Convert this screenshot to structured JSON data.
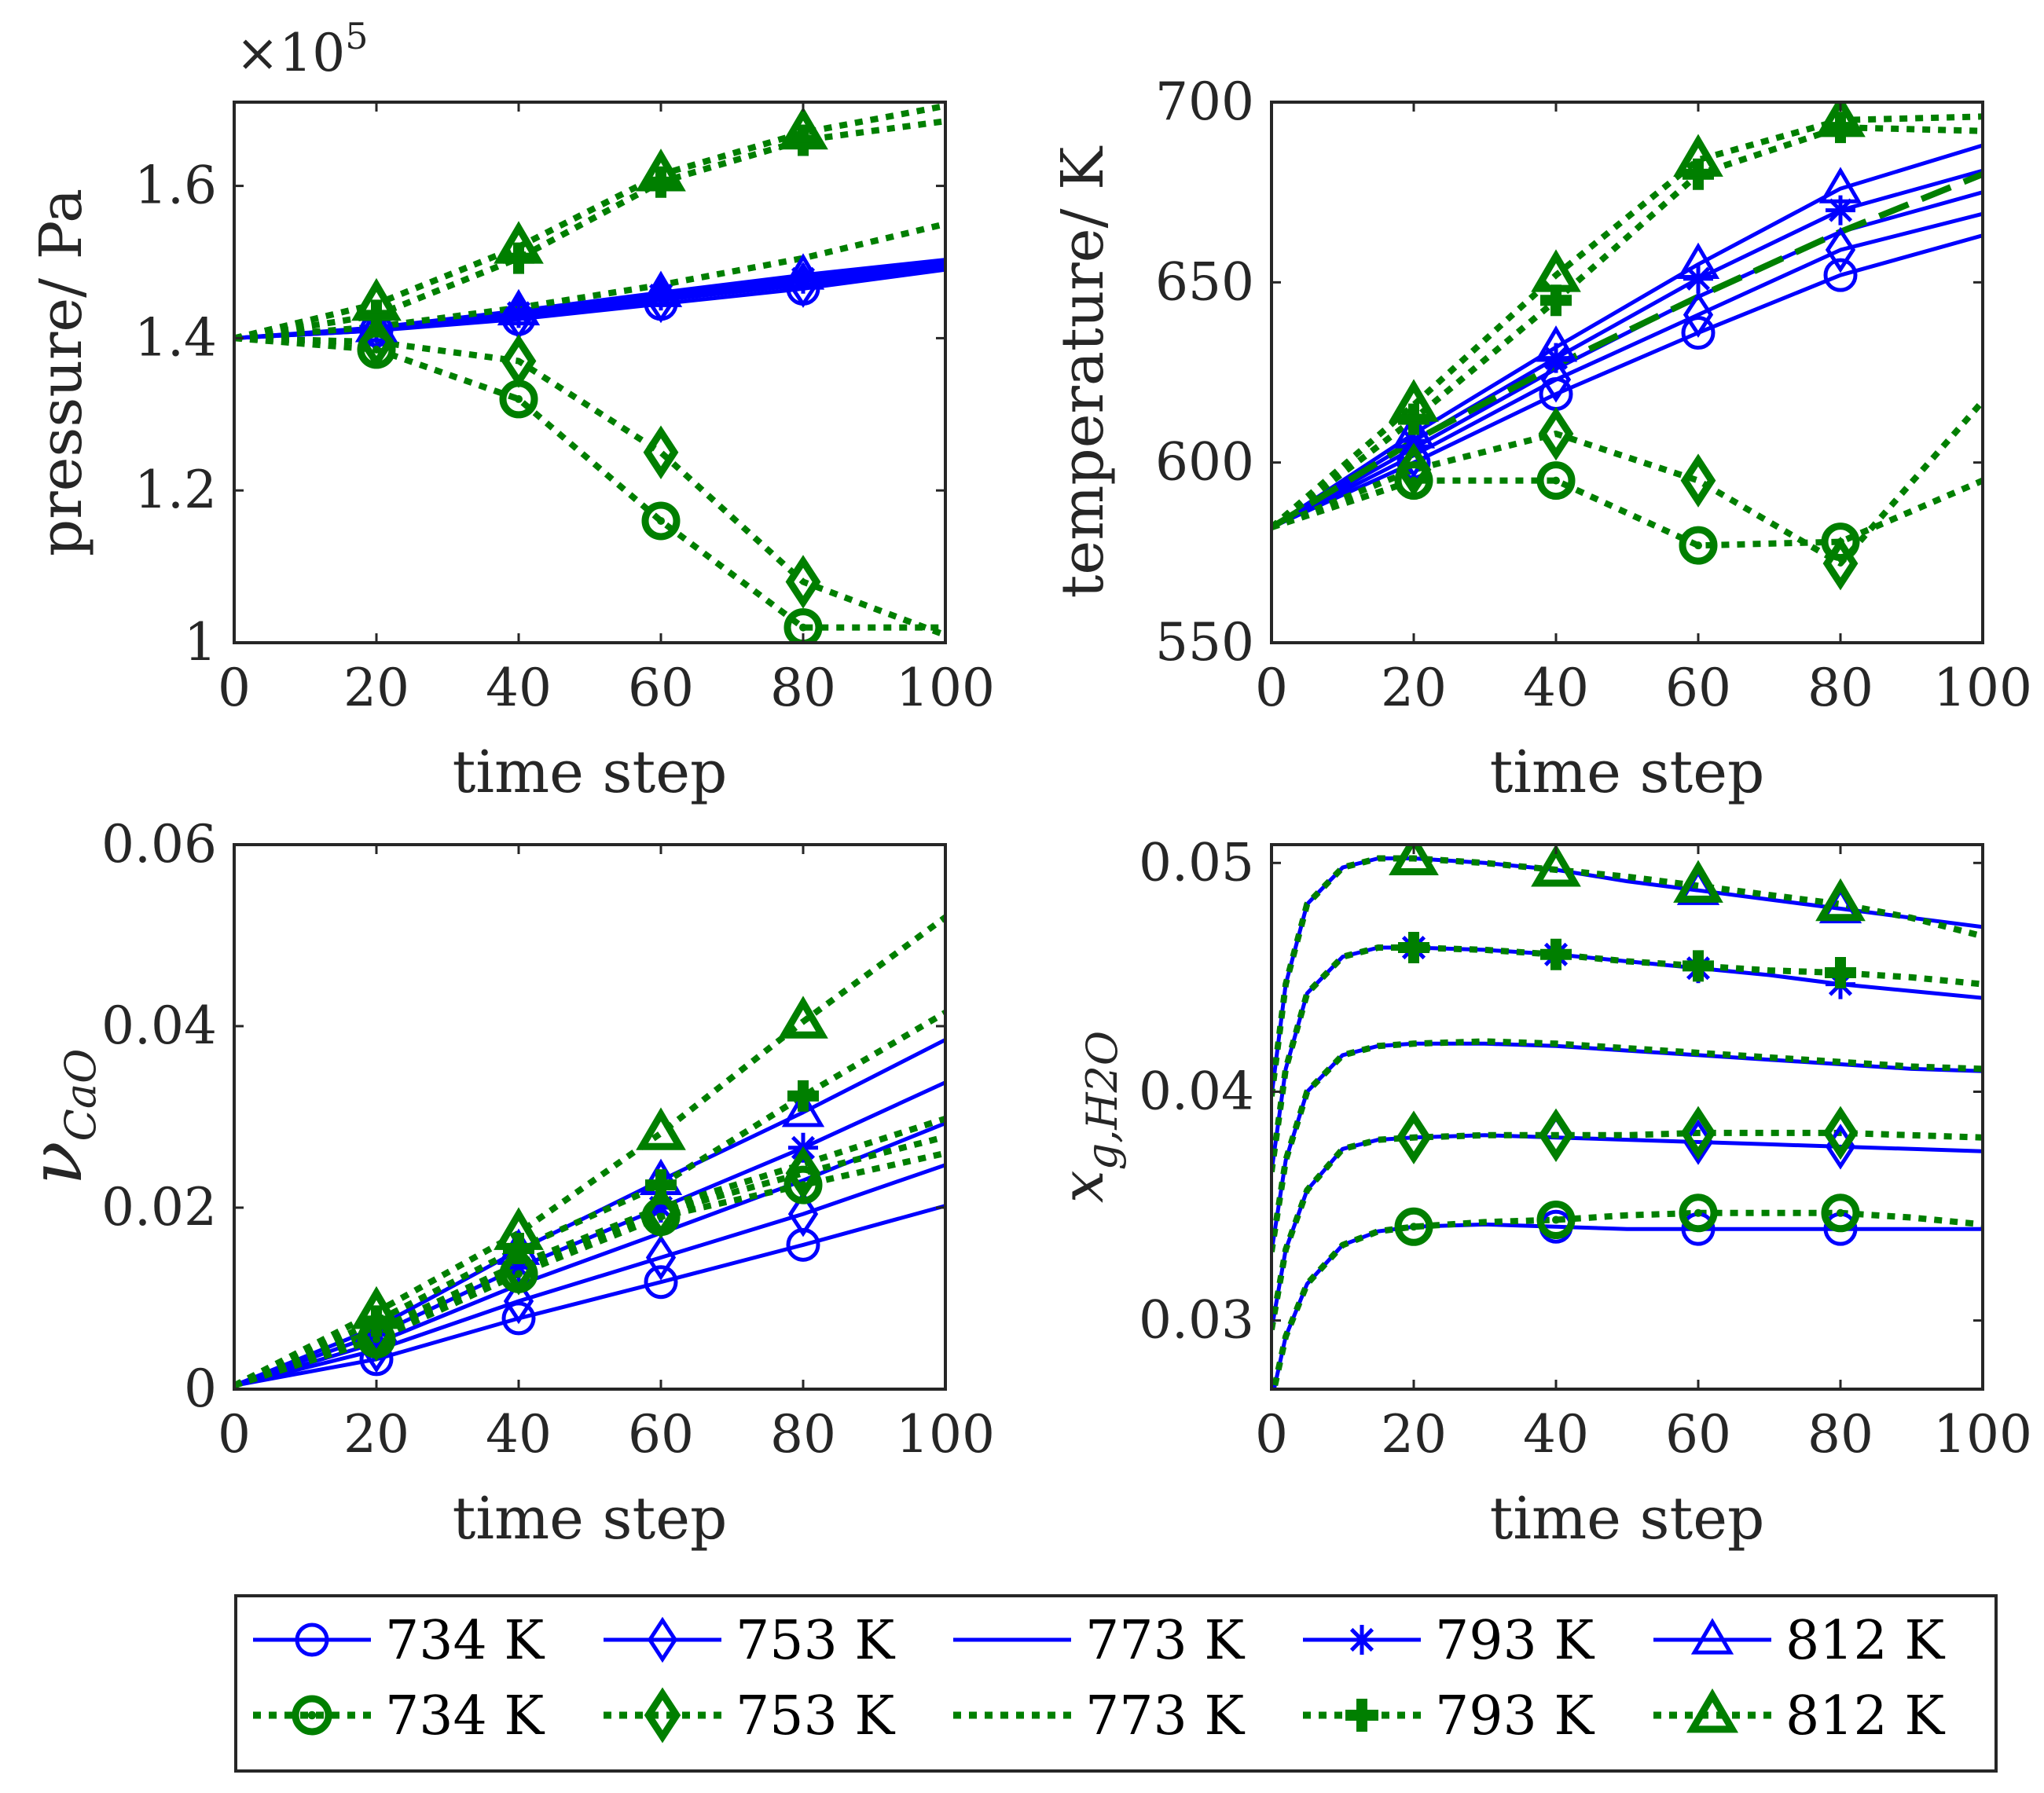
{
  "colors": {
    "blue": "#0000ff",
    "green": "#007f00",
    "axis": "#262626"
  },
  "chart_data": [
    {
      "type": "line",
      "id": "pressure",
      "title": "",
      "xlabel": "time step",
      "ylabel": "pressure/ Pa",
      "exponent_base": "×10",
      "exponent_power": "5",
      "xlim": [
        0,
        100
      ],
      "ylim": [
        1.0,
        1.71
      ],
      "xticks": [
        "0",
        "20",
        "40",
        "60",
        "80",
        "100"
      ],
      "yticks": [
        "1",
        "1.2",
        "1.4",
        "1.6"
      ],
      "ytick_values": [
        1.0,
        1.2,
        1.4,
        1.6
      ],
      "x": [
        0,
        20,
        40,
        60,
        80,
        100
      ],
      "series": [
        {
          "name": "734 K",
          "group": "blue",
          "marker": "circle",
          "values": [
            1.4,
            1.41,
            1.425,
            1.445,
            1.465,
            1.49
          ]
        },
        {
          "name": "753 K",
          "group": "blue",
          "marker": "diamond",
          "values": [
            1.4,
            1.41,
            1.428,
            1.45,
            1.47,
            1.493
          ]
        },
        {
          "name": "773 K",
          "group": "blue",
          "marker": "none",
          "values": [
            1.4,
            1.412,
            1.43,
            1.453,
            1.475,
            1.496
          ]
        },
        {
          "name": "793 K",
          "group": "blue",
          "marker": "star",
          "values": [
            1.4,
            1.413,
            1.433,
            1.456,
            1.478,
            1.499
          ]
        },
        {
          "name": "812 K",
          "group": "blue",
          "marker": "triangle",
          "values": [
            1.4,
            1.414,
            1.436,
            1.46,
            1.483,
            1.503
          ]
        },
        {
          "name": "734 K",
          "group": "green",
          "marker": "circle",
          "values": [
            1.4,
            1.385,
            1.32,
            1.16,
            1.02,
            1.02
          ]
        },
        {
          "name": "753 K",
          "group": "green",
          "marker": "diamond",
          "values": [
            1.4,
            1.395,
            1.37,
            1.25,
            1.08,
            1.01
          ]
        },
        {
          "name": "773 K",
          "group": "green",
          "marker": "none",
          "values": [
            1.4,
            1.415,
            1.44,
            1.47,
            1.505,
            1.55
          ]
        },
        {
          "name": "793 K",
          "group": "green",
          "marker": "plus",
          "values": [
            1.4,
            1.43,
            1.505,
            1.605,
            1.66,
            1.685
          ]
        },
        {
          "name": "812 K",
          "group": "green",
          "marker": "triangle",
          "values": [
            1.4,
            1.445,
            1.52,
            1.615,
            1.67,
            1.705
          ]
        }
      ]
    },
    {
      "type": "line",
      "id": "temperature",
      "title": "",
      "xlabel": "time step",
      "ylabel": "temperature/ K",
      "xlim": [
        0,
        100
      ],
      "ylim": [
        550,
        700
      ],
      "xticks": [
        "0",
        "20",
        "40",
        "60",
        "80",
        "100"
      ],
      "yticks": [
        "550",
        "600",
        "650",
        "700"
      ],
      "ytick_values": [
        550,
        600,
        650,
        700
      ],
      "x": [
        0,
        20,
        40,
        60,
        80,
        100
      ],
      "series": [
        {
          "name": "734 K",
          "group": "blue",
          "marker": "circle",
          "values": [
            582,
            600,
            619,
            636,
            652,
            663
          ]
        },
        {
          "name": "753 K",
          "group": "blue",
          "marker": "diamond",
          "values": [
            582,
            602,
            623,
            641,
            659,
            669
          ]
        },
        {
          "name": "773 K",
          "group": "blue",
          "marker": "none",
          "values": [
            582,
            604,
            626,
            646,
            664,
            675
          ]
        },
        {
          "name": "793 K",
          "group": "blue",
          "marker": "star",
          "values": [
            582,
            606,
            629,
            651,
            670,
            681
          ]
        },
        {
          "name": "812 K",
          "group": "blue",
          "marker": "triangle",
          "values": [
            582,
            608,
            632,
            655,
            676,
            688
          ]
        },
        {
          "name": "734 K",
          "group": "green",
          "marker": "circle",
          "values": [
            582,
            595,
            595,
            577,
            578,
            595
          ]
        },
        {
          "name": "753 K",
          "group": "green",
          "marker": "diamond",
          "values": [
            582,
            598,
            608,
            595,
            572,
            617
          ]
        },
        {
          "name": "773 K",
          "group": "green",
          "marker": "none",
          "values": [
            582,
            606,
            627,
            646,
            664,
            680
          ]
        },
        {
          "name": "793 K",
          "group": "green",
          "marker": "plus",
          "values": [
            582,
            612,
            645,
            680,
            693,
            692
          ]
        },
        {
          "name": "812 K",
          "group": "green",
          "marker": "triangle",
          "values": [
            582,
            616,
            652,
            684,
            695,
            696
          ]
        }
      ]
    },
    {
      "type": "line",
      "id": "nu-cao",
      "title": "",
      "xlabel": "time step",
      "ylabel": "ν",
      "ylabel_sub": "CaO",
      "xlim": [
        0,
        100
      ],
      "ylim": [
        0,
        0.06
      ],
      "xticks": [
        "0",
        "20",
        "40",
        "60",
        "80",
        "100"
      ],
      "yticks": [
        "0",
        "0.02",
        "0.04",
        "0.06"
      ],
      "ytick_values": [
        0,
        0.02,
        0.04,
        0.06
      ],
      "x": [
        0,
        20,
        40,
        60,
        80,
        100
      ],
      "series": [
        {
          "name": "734 K",
          "group": "blue",
          "marker": "circle",
          "values": [
            0.0004,
            0.0033,
            0.0078,
            0.0118,
            0.0159,
            0.0202
          ]
        },
        {
          "name": "753 K",
          "group": "blue",
          "marker": "diamond",
          "values": [
            0.0004,
            0.0043,
            0.0097,
            0.0145,
            0.0193,
            0.0247
          ]
        },
        {
          "name": "773 K",
          "group": "blue",
          "marker": "none",
          "values": [
            0.0004,
            0.0051,
            0.0115,
            0.0172,
            0.023,
            0.0293
          ]
        },
        {
          "name": "793 K",
          "group": "blue",
          "marker": "star",
          "values": [
            0.0004,
            0.006,
            0.0134,
            0.02,
            0.0266,
            0.0338
          ]
        },
        {
          "name": "812 K",
          "group": "blue",
          "marker": "triangle",
          "values": [
            0.0004,
            0.0068,
            0.0153,
            0.023,
            0.0305,
            0.0385
          ]
        },
        {
          "name": "734 K",
          "group": "green",
          "marker": "circle",
          "values": [
            0.0004,
            0.0055,
            0.0127,
            0.019,
            0.0225,
            0.026
          ]
        },
        {
          "name": "753 K",
          "group": "green",
          "marker": "diamond",
          "values": [
            0.0004,
            0.006,
            0.0133,
            0.0195,
            0.0238,
            0.0278
          ]
        },
        {
          "name": "773 K",
          "group": "green",
          "marker": "none",
          "values": [
            0.0004,
            0.0065,
            0.0138,
            0.02,
            0.0248,
            0.0298
          ]
        },
        {
          "name": "793 K",
          "group": "green",
          "marker": "plus",
          "values": [
            0.0004,
            0.0075,
            0.0155,
            0.0225,
            0.0323,
            0.0415
          ]
        },
        {
          "name": "812 K",
          "group": "green",
          "marker": "triangle",
          "values": [
            0.0004,
            0.0085,
            0.0172,
            0.0282,
            0.0405,
            0.052
          ]
        }
      ]
    },
    {
      "type": "line",
      "id": "x-h2o",
      "title": "",
      "xlabel": "time step",
      "ylabel": "x",
      "ylabel_sub": "g,H2O",
      "xlim": [
        0,
        100
      ],
      "ylim": [
        0.027,
        0.0508
      ],
      "xticks": [
        "0",
        "20",
        "40",
        "60",
        "80",
        "100"
      ],
      "yticks": [
        "0.03",
        "0.04",
        "0.05"
      ],
      "ytick_values": [
        0.03,
        0.04,
        0.05
      ],
      "x": [
        0,
        2,
        5,
        10,
        15,
        20,
        30,
        40,
        50,
        60,
        70,
        80,
        90,
        100
      ],
      "series": [
        {
          "name": "734 K",
          "group": "blue",
          "marker": "circle",
          "values": [
            0.0265,
            0.0293,
            0.0316,
            0.0333,
            0.0339,
            0.0341,
            0.0342,
            0.0341,
            0.034,
            0.034,
            0.034,
            0.034,
            0.034,
            0.034
          ]
        },
        {
          "name": "753 K",
          "group": "blue",
          "marker": "diamond",
          "values": [
            0.0296,
            0.0331,
            0.0357,
            0.0375,
            0.0379,
            0.038,
            0.0381,
            0.038,
            0.0379,
            0.0378,
            0.0377,
            0.0376,
            0.0375,
            0.0374
          ]
        },
        {
          "name": "773 K",
          "group": "blue",
          "marker": "none",
          "values": [
            0.033,
            0.037,
            0.04,
            0.0416,
            0.042,
            0.0421,
            0.0421,
            0.042,
            0.0418,
            0.0416,
            0.0414,
            0.0412,
            0.041,
            0.0409
          ]
        },
        {
          "name": "793 K",
          "group": "blue",
          "marker": "star",
          "values": [
            0.0365,
            0.041,
            0.0443,
            0.0459,
            0.0463,
            0.0463,
            0.0462,
            0.046,
            0.0457,
            0.0454,
            0.0451,
            0.0447,
            0.0444,
            0.0441
          ]
        },
        {
          "name": "812 K",
          "group": "blue",
          "marker": "triangle",
          "values": [
            0.0398,
            0.0447,
            0.0482,
            0.0498,
            0.0502,
            0.0502,
            0.05,
            0.0497,
            0.0492,
            0.0488,
            0.0484,
            0.048,
            0.0476,
            0.0472
          ]
        },
        {
          "name": "734 K",
          "group": "green",
          "marker": "circle",
          "values": [
            0.0265,
            0.0293,
            0.0316,
            0.0333,
            0.0339,
            0.0341,
            0.0343,
            0.0344,
            0.0346,
            0.0347,
            0.0347,
            0.0347,
            0.0345,
            0.0342
          ]
        },
        {
          "name": "753 K",
          "group": "green",
          "marker": "diamond",
          "values": [
            0.0296,
            0.0331,
            0.0357,
            0.0375,
            0.0379,
            0.038,
            0.0381,
            0.0381,
            0.0381,
            0.0382,
            0.0382,
            0.0382,
            0.0381,
            0.038
          ]
        },
        {
          "name": "773 K",
          "group": "green",
          "marker": "none",
          "values": [
            0.033,
            0.037,
            0.04,
            0.0416,
            0.042,
            0.0421,
            0.0422,
            0.0421,
            0.0419,
            0.0417,
            0.0415,
            0.0413,
            0.0411,
            0.041
          ]
        },
        {
          "name": "793 K",
          "group": "green",
          "marker": "plus",
          "values": [
            0.0365,
            0.041,
            0.0443,
            0.0459,
            0.0463,
            0.0463,
            0.0462,
            0.046,
            0.0457,
            0.0455,
            0.0453,
            0.0452,
            0.045,
            0.0447
          ]
        },
        {
          "name": "812 K",
          "group": "green",
          "marker": "triangle",
          "values": [
            0.0398,
            0.0447,
            0.0482,
            0.0498,
            0.0502,
            0.0502,
            0.05,
            0.0497,
            0.0494,
            0.049,
            0.0486,
            0.0482,
            0.0476,
            0.0468
          ]
        }
      ]
    }
  ],
  "legend": {
    "placement": "bottom",
    "rows": [
      [
        {
          "label": "734 K",
          "group": "blue",
          "marker": "circle"
        },
        {
          "label": "753 K",
          "group": "blue",
          "marker": "diamond"
        },
        {
          "label": "773 K",
          "group": "blue",
          "marker": "none"
        },
        {
          "label": "793 K",
          "group": "blue",
          "marker": "star"
        },
        {
          "label": "812 K",
          "group": "blue",
          "marker": "triangle"
        }
      ],
      [
        {
          "label": "734 K",
          "group": "green",
          "marker": "circle"
        },
        {
          "label": "753 K",
          "group": "green",
          "marker": "diamond"
        },
        {
          "label": "773 K",
          "group": "green",
          "marker": "none"
        },
        {
          "label": "793 K",
          "group": "green",
          "marker": "plus"
        },
        {
          "label": "812 K",
          "group": "green",
          "marker": "triangle"
        }
      ]
    ]
  }
}
